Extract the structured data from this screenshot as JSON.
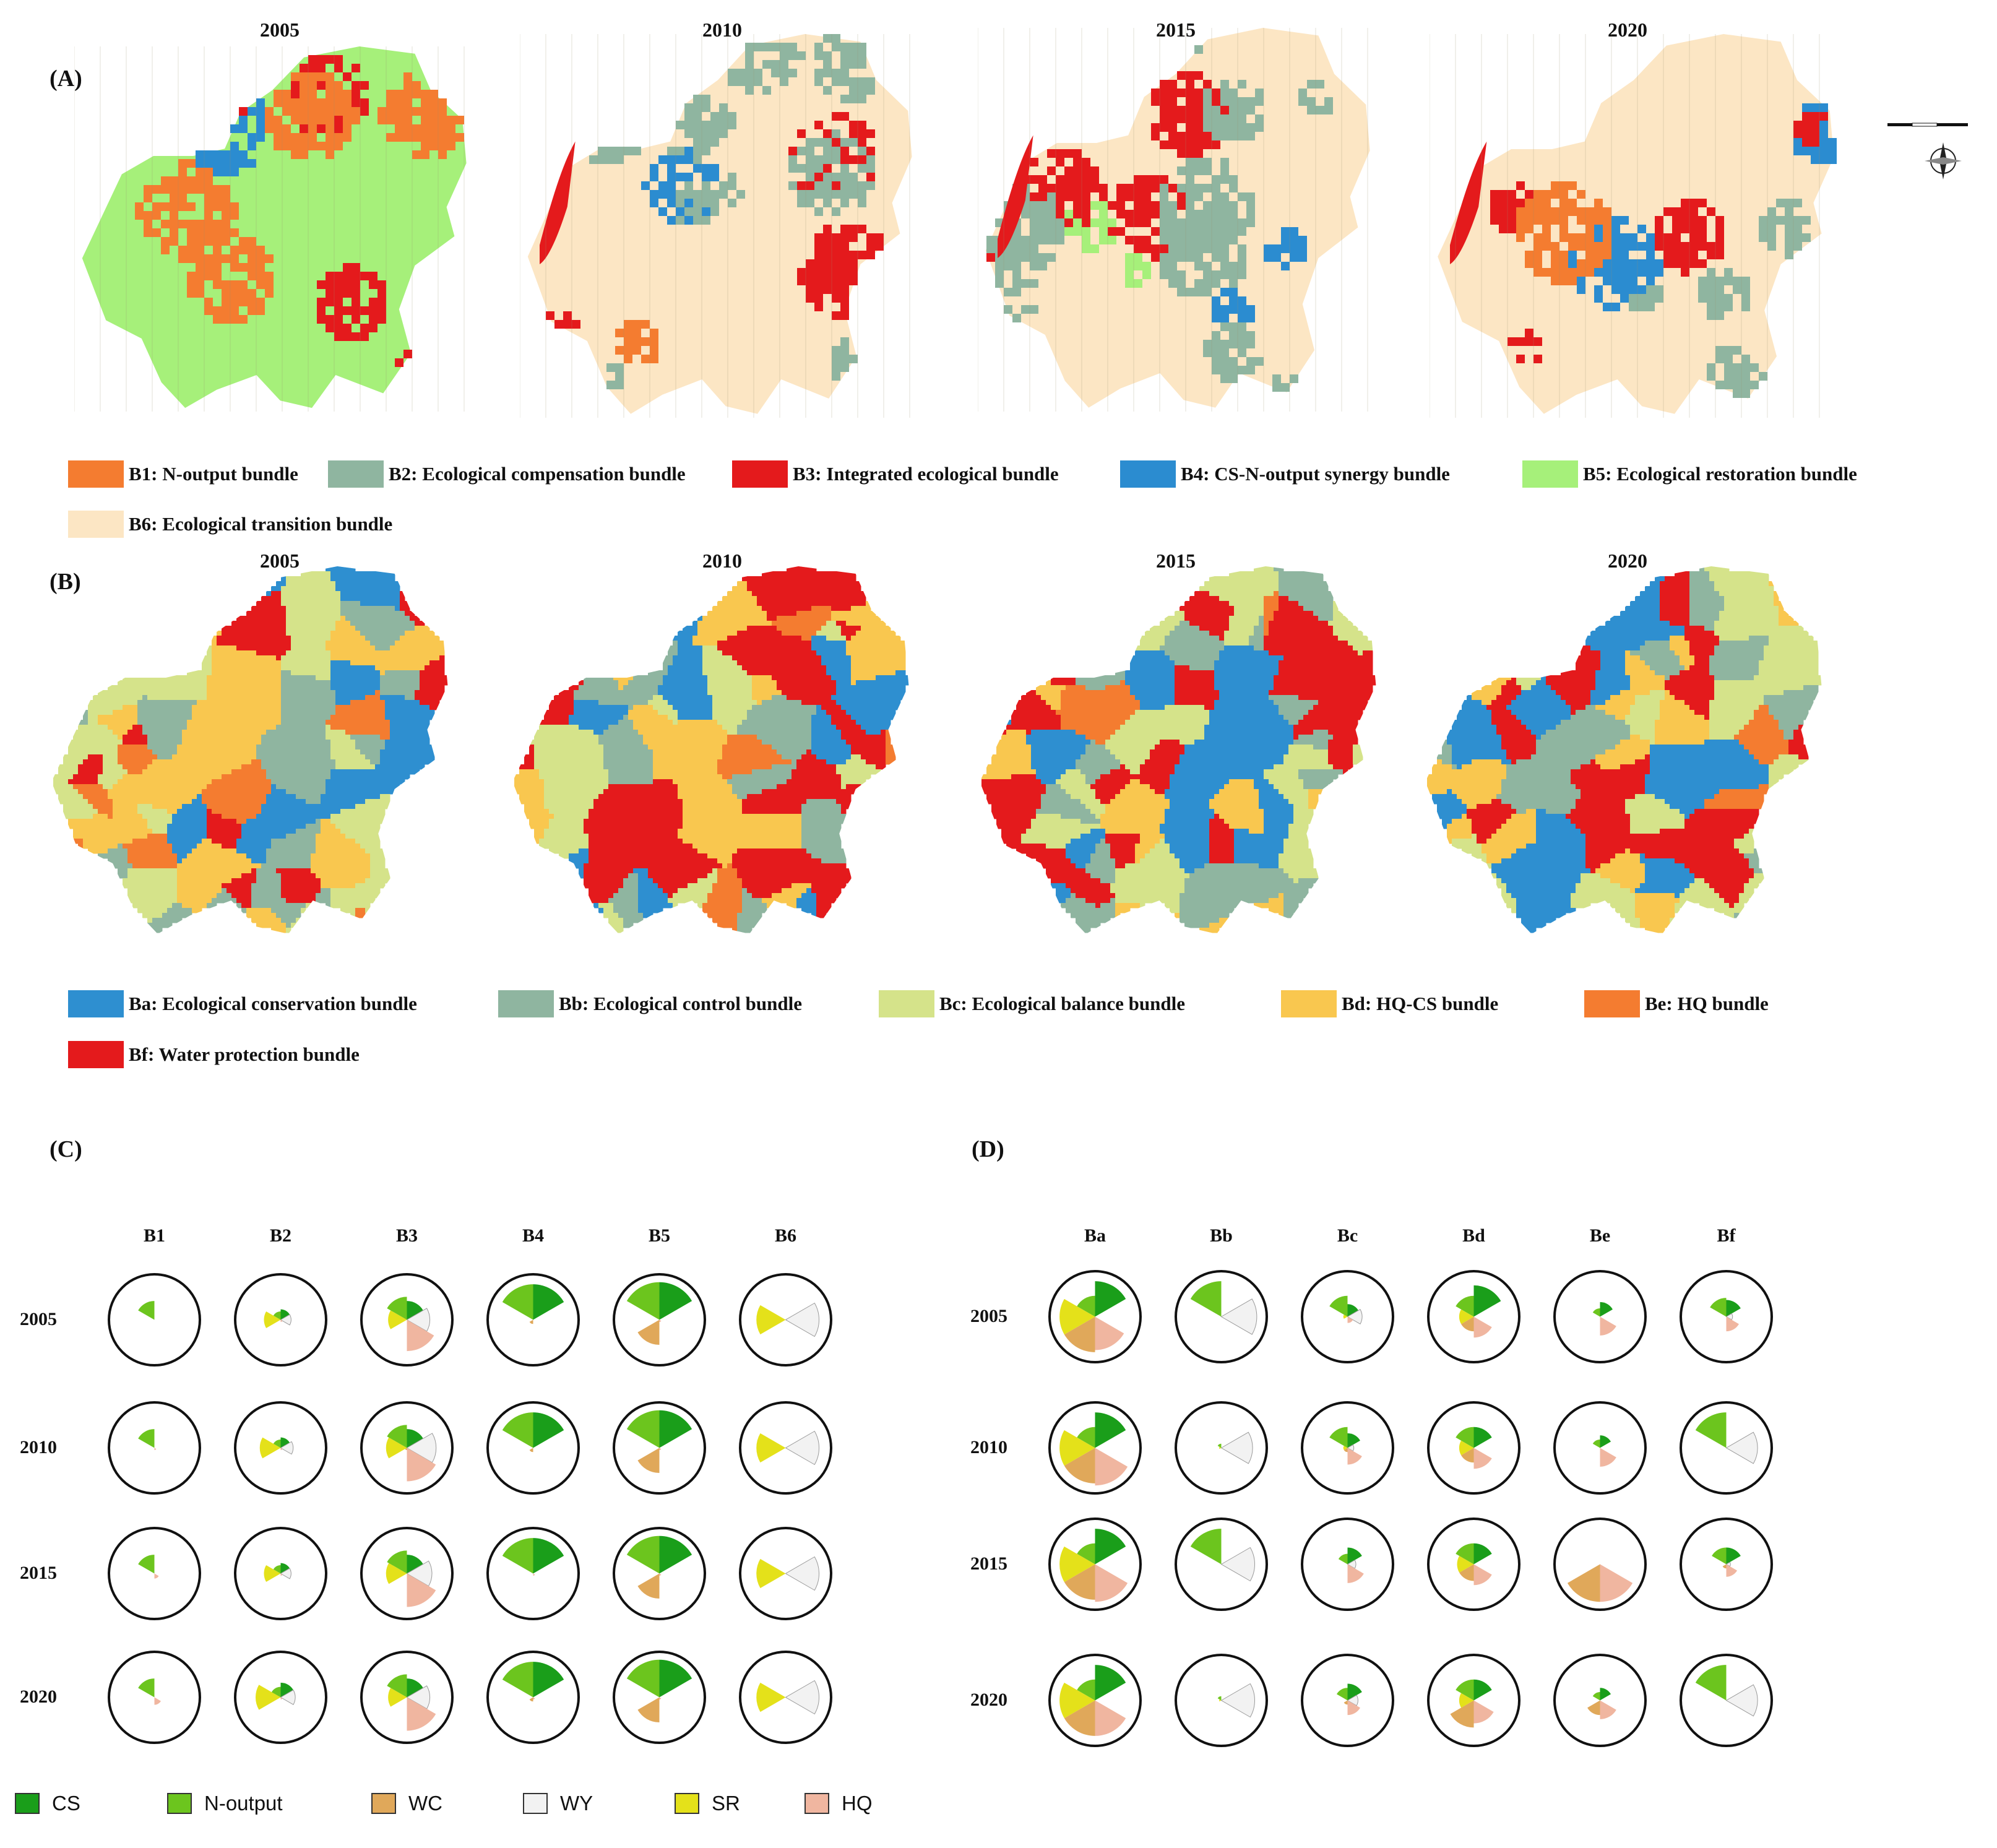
{
  "panels": {
    "A": {
      "label": "(A)",
      "years": [
        "2005",
        "2010",
        "2015",
        "2020"
      ],
      "legend": [
        {
          "code": "B1",
          "text": "B1: N-output bundle",
          "color": "#F47C30"
        },
        {
          "code": "B2",
          "text": "B2: Ecological compensation bundle",
          "color": "#8FB5A0"
        },
        {
          "code": "B3",
          "text": "B3: Integrated ecological bundle",
          "color": "#E41A1C"
        },
        {
          "code": "B4",
          "text": "B4: CS-N-output synergy bundle",
          "color": "#2B8CD0"
        },
        {
          "code": "B5",
          "text": "B5: Ecological restoration bundle",
          "color": "#A6F07A"
        },
        {
          "code": "B6",
          "text": "B6: Ecological transition bundle",
          "color": "#FCE6C4"
        }
      ]
    },
    "B": {
      "label": "(B)",
      "years": [
        "2005",
        "2010",
        "2015",
        "2020"
      ],
      "legend": [
        {
          "code": "Ba",
          "text": "Ba: Ecological conservation bundle",
          "color": "#2E8FD0"
        },
        {
          "code": "Bb",
          "text": "Bb: Ecological control bundle",
          "color": "#8FB5A0"
        },
        {
          "code": "Bc",
          "text": "Bc: Ecological balance bundle",
          "color": "#D5E38A"
        },
        {
          "code": "Bd",
          "text": "Bd: HQ-CS bundle",
          "color": "#F9C74F"
        },
        {
          "code": "Be",
          "text": "Be: HQ bundle",
          "color": "#F47C30"
        },
        {
          "code": "Bf",
          "text": "Bf: Water protection bundle",
          "color": "#E41A1C"
        }
      ]
    },
    "C": {
      "label": "(C)",
      "columns": [
        "B1",
        "B2",
        "B3",
        "B4",
        "B5",
        "B6"
      ],
      "rows": [
        "2005",
        "2010",
        "2015",
        "2020"
      ]
    },
    "D": {
      "label": "(D)",
      "columns": [
        "Ba",
        "Bb",
        "Bc",
        "Bd",
        "Be",
        "Bf"
      ],
      "rows": [
        "2005",
        "2010",
        "2015",
        "2020"
      ]
    }
  },
  "services": [
    {
      "name": "CS",
      "color": "#1A9E1A"
    },
    {
      "name": "N-output",
      "color": "#6CC51E"
    },
    {
      "name": "WC",
      "color": "#E0A85A"
    },
    {
      "name": "WY",
      "color": "#F2F2F2"
    },
    {
      "name": "SR",
      "color": "#E4E11A"
    },
    {
      "name": "HQ",
      "color": "#F0B6A0"
    }
  ],
  "rose_values_C": {
    "B1": [
      [
        0.0,
        0.45,
        0.0,
        0.0,
        0.0,
        0.0
      ],
      [
        0.0,
        0.45,
        0.0,
        0.0,
        0.0,
        0.05
      ],
      [
        0.0,
        0.45,
        0.0,
        0.0,
        0.0,
        0.12
      ],
      [
        0.0,
        0.45,
        0.0,
        0.0,
        0.0,
        0.18
      ]
    ],
    "B2": [
      [
        0.25,
        0.2,
        0.0,
        0.25,
        0.4,
        0.05
      ],
      [
        0.25,
        0.2,
        0.0,
        0.3,
        0.5,
        0.05
      ],
      [
        0.25,
        0.2,
        0.0,
        0.25,
        0.4,
        0.05
      ],
      [
        0.35,
        0.25,
        0.0,
        0.35,
        0.6,
        0.05
      ]
    ],
    "B3": [
      [
        0.45,
        0.55,
        0.0,
        0.55,
        0.45,
        0.75
      ],
      [
        0.45,
        0.55,
        0.05,
        0.7,
        0.5,
        0.8
      ],
      [
        0.45,
        0.55,
        0.0,
        0.6,
        0.5,
        0.8
      ],
      [
        0.45,
        0.55,
        0.0,
        0.55,
        0.45,
        0.8
      ]
    ],
    "B4": [
      [
        0.85,
        0.85,
        0.1,
        0.0,
        0.0,
        0.0
      ],
      [
        0.85,
        0.85,
        0.1,
        0.0,
        0.0,
        0.0
      ],
      [
        0.85,
        0.85,
        0.0,
        0.0,
        0.0,
        0.05
      ],
      [
        0.85,
        0.85,
        0.1,
        0.0,
        0.0,
        0.05
      ]
    ],
    "B5": [
      [
        0.9,
        0.9,
        0.6,
        0.0,
        0.0,
        0.05
      ],
      [
        0.9,
        0.9,
        0.6,
        0.0,
        0.0,
        0.05
      ],
      [
        0.9,
        0.9,
        0.6,
        0.0,
        0.0,
        0.05
      ],
      [
        0.9,
        0.9,
        0.6,
        0.0,
        0.0,
        0.05
      ]
    ],
    "B6": [
      [
        0.0,
        0.0,
        0.0,
        0.8,
        0.7,
        0.0
      ],
      [
        0.0,
        0.0,
        0.0,
        0.8,
        0.7,
        0.0
      ],
      [
        0.0,
        0.0,
        0.0,
        0.8,
        0.7,
        0.0
      ],
      [
        0.0,
        0.0,
        0.0,
        0.8,
        0.7,
        0.0
      ]
    ]
  },
  "rose_values_D": {
    "Ba": [
      [
        0.85,
        0.5,
        0.85,
        0.0,
        0.85,
        0.8
      ],
      [
        0.85,
        0.5,
        0.85,
        0.0,
        0.85,
        0.9
      ],
      [
        0.85,
        0.5,
        0.85,
        0.0,
        0.85,
        0.9
      ],
      [
        0.85,
        0.5,
        0.85,
        0.0,
        0.85,
        0.85
      ]
    ],
    "Bb": [
      [
        0.0,
        0.85,
        0.0,
        0.85,
        0.0,
        0.0
      ],
      [
        0.0,
        0.1,
        0.0,
        0.75,
        0.05,
        0.0
      ],
      [
        0.0,
        0.85,
        0.0,
        0.8,
        0.0,
        0.0
      ],
      [
        0.0,
        0.1,
        0.0,
        0.8,
        0.05,
        0.0
      ]
    ],
    "Bc": [
      [
        0.3,
        0.5,
        0.0,
        0.35,
        0.1,
        0.15
      ],
      [
        0.35,
        0.5,
        0.1,
        0.15,
        0.1,
        0.4
      ],
      [
        0.4,
        0.25,
        0.0,
        0.2,
        0.0,
        0.45
      ],
      [
        0.4,
        0.3,
        0.1,
        0.25,
        0.0,
        0.35
      ]
    ],
    "Bd": [
      [
        0.75,
        0.5,
        0.35,
        0.0,
        0.35,
        0.5
      ],
      [
        0.5,
        0.5,
        0.35,
        0.0,
        0.35,
        0.5
      ],
      [
        0.5,
        0.5,
        0.4,
        0.0,
        0.4,
        0.5
      ],
      [
        0.5,
        0.5,
        0.65,
        0.0,
        0.35,
        0.55
      ]
    ],
    "Be": [
      [
        0.35,
        0.2,
        0.0,
        0.0,
        0.0,
        0.45
      ],
      [
        0.3,
        0.2,
        0.0,
        0.0,
        0.0,
        0.45
      ],
      [
        0.0,
        0.0,
        0.9,
        0.0,
        0.0,
        0.9
      ],
      [
        0.3,
        0.2,
        0.35,
        0.0,
        0.0,
        0.45
      ]
    ],
    "Bf": [
      [
        0.4,
        0.45,
        0.0,
        0.15,
        0.0,
        0.35
      ],
      [
        0.0,
        0.85,
        0.0,
        0.75,
        0.0,
        0.0
      ],
      [
        0.4,
        0.4,
        0.1,
        0.1,
        0.0,
        0.3
      ],
      [
        0.0,
        0.85,
        0.0,
        0.75,
        0.0,
        0.0
      ]
    ]
  },
  "map_A_mix": [
    {
      "B1": 0.18,
      "B2": 0.0,
      "B3": 0.16,
      "B4": 0.07,
      "B5": 0.59,
      "B6": 0.0
    },
    {
      "B1": 0.02,
      "B2": 0.25,
      "B3": 0.1,
      "B4": 0.06,
      "B5": 0.0,
      "B6": 0.57
    },
    {
      "B1": 0.01,
      "B2": 0.32,
      "B3": 0.09,
      "B4": 0.06,
      "B5": 0.05,
      "B6": 0.47
    },
    {
      "B1": 0.02,
      "B2": 0.24,
      "B3": 0.11,
      "B4": 0.06,
      "B5": 0.02,
      "B6": 0.55
    }
  ],
  "map_B_mix": [
    {
      "Ba": 0.22,
      "Bb": 0.16,
      "Bc": 0.25,
      "Bd": 0.22,
      "Be": 0.05,
      "Bf": 0.1
    },
    {
      "Ba": 0.2,
      "Bb": 0.12,
      "Bc": 0.14,
      "Bd": 0.16,
      "Be": 0.06,
      "Bf": 0.32
    },
    {
      "Ba": 0.18,
      "Bb": 0.14,
      "Bc": 0.16,
      "Bd": 0.14,
      "Be": 0.08,
      "Bf": 0.3
    },
    {
      "Ba": 0.22,
      "Bb": 0.16,
      "Bc": 0.16,
      "Bd": 0.12,
      "Be": 0.06,
      "Bf": 0.28
    }
  ]
}
